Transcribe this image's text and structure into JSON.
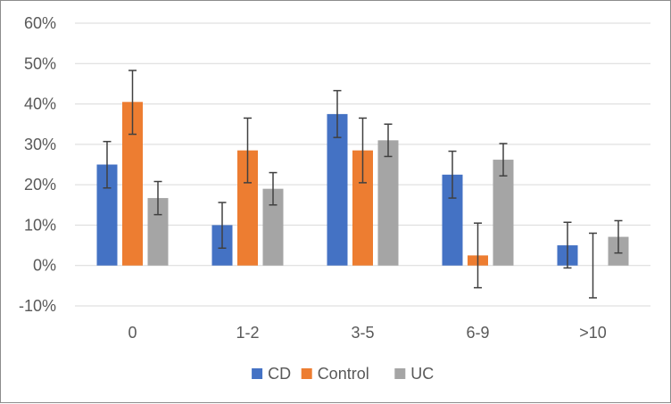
{
  "chart_data": {
    "type": "bar",
    "categories": [
      "0",
      "1-2",
      "3-5",
      "6-9",
      ">10"
    ],
    "series": [
      {
        "name": "CD",
        "color": "#4472C4",
        "values": [
          25.0,
          10.0,
          37.5,
          22.5,
          5.0
        ],
        "err_low": [
          19.2,
          4.3,
          31.7,
          16.7,
          -0.6
        ],
        "err_high": [
          30.7,
          15.6,
          43.3,
          28.3,
          10.7
        ]
      },
      {
        "name": "Control",
        "color": "#ED7D31",
        "values": [
          40.5,
          28.5,
          28.5,
          2.5,
          0.0
        ],
        "err_low": [
          32.5,
          20.5,
          20.5,
          -5.5,
          -8.0
        ],
        "err_high": [
          48.3,
          36.5,
          36.5,
          10.5,
          8.0
        ]
      },
      {
        "name": "UC",
        "color": "#A5A5A5",
        "values": [
          16.7,
          19.0,
          31.0,
          26.2,
          7.1
        ],
        "err_low": [
          12.6,
          15.0,
          27.0,
          22.2,
          3.1
        ],
        "err_high": [
          20.8,
          23.0,
          35.0,
          30.2,
          11.1
        ]
      }
    ],
    "y_ticks": [
      "-10%",
      "0%",
      "10%",
      "20%",
      "30%",
      "40%",
      "50%",
      "60%"
    ],
    "ylim": [
      -10,
      60
    ],
    "grid": true,
    "legend_position": "bottom",
    "title": "",
    "xlabel": "",
    "ylabel": ""
  }
}
